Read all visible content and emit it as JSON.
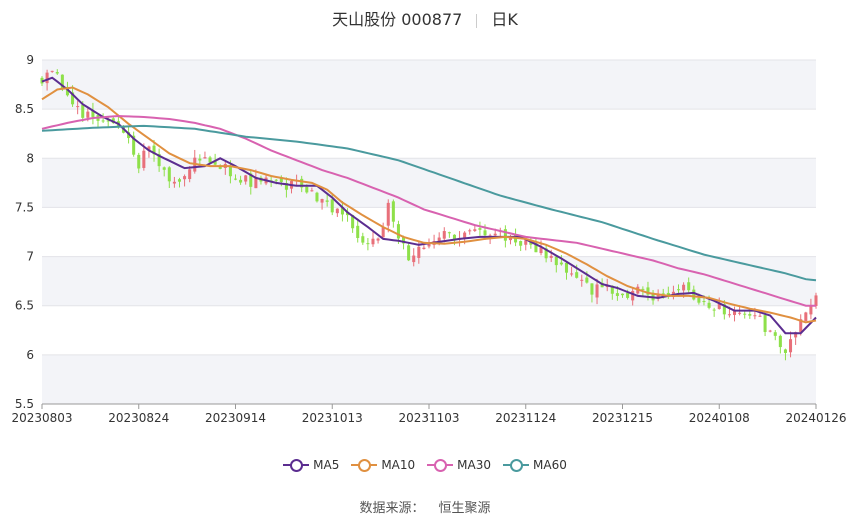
{
  "header": {
    "stock_name_code": "天山股份 000877",
    "period": "日K"
  },
  "footer": {
    "source_label": "数据来源：",
    "source_name": "恒生聚源"
  },
  "colors": {
    "up": "#e8707a",
    "down": "#8ee04a",
    "MA5": "#5b2d90",
    "MA10": "#e09040",
    "MA30": "#d862b0",
    "MA60": "#4a9a9e"
  },
  "chart_data": {
    "type": "candlestick",
    "title": "天山股份 000877 日K",
    "ylim": [
      5.5,
      9
    ],
    "yticks": [
      5.5,
      6,
      6.5,
      7,
      7.5,
      8,
      8.5,
      9
    ],
    "xticks": [
      "20230803",
      "20230824",
      "20230914",
      "20231013",
      "20231103",
      "20231124",
      "20231215",
      "20240108",
      "20240126"
    ],
    "grid": true,
    "legend_position": "bottom",
    "series_names": [
      "MA5",
      "MA10",
      "MA30",
      "MA60"
    ],
    "ma_anchors": {
      "MA5": [
        [
          0,
          8.78
        ],
        [
          2,
          8.82
        ],
        [
          5,
          8.7
        ],
        [
          8,
          8.55
        ],
        [
          12,
          8.42
        ],
        [
          15,
          8.35
        ],
        [
          18,
          8.2
        ],
        [
          21,
          8.08
        ],
        [
          24,
          8.0
        ],
        [
          28,
          7.9
        ],
        [
          32,
          7.92
        ],
        [
          35,
          8.0
        ],
        [
          38,
          7.92
        ],
        [
          42,
          7.8
        ],
        [
          46,
          7.75
        ],
        [
          50,
          7.72
        ],
        [
          54,
          7.72
        ],
        [
          57,
          7.6
        ],
        [
          60,
          7.45
        ],
        [
          64,
          7.3
        ],
        [
          67,
          7.18
        ],
        [
          70,
          7.16
        ],
        [
          74,
          7.12
        ],
        [
          78,
          7.15
        ],
        [
          82,
          7.18
        ],
        [
          86,
          7.2
        ],
        [
          90,
          7.2
        ],
        [
          94,
          7.2
        ],
        [
          98,
          7.1
        ],
        [
          102,
          6.98
        ],
        [
          106,
          6.85
        ],
        [
          110,
          6.72
        ],
        [
          113,
          6.68
        ],
        [
          117,
          6.6
        ],
        [
          121,
          6.58
        ],
        [
          125,
          6.62
        ],
        [
          128,
          6.63
        ],
        [
          132,
          6.55
        ],
        [
          136,
          6.45
        ],
        [
          140,
          6.45
        ],
        [
          143,
          6.4
        ],
        [
          146,
          6.22
        ],
        [
          149,
          6.22
        ],
        [
          152,
          6.38
        ]
      ],
      "MA10": [
        [
          0,
          8.6
        ],
        [
          3,
          8.7
        ],
        [
          6,
          8.72
        ],
        [
          9,
          8.65
        ],
        [
          13,
          8.52
        ],
        [
          17,
          8.35
        ],
        [
          21,
          8.2
        ],
        [
          25,
          8.05
        ],
        [
          29,
          7.95
        ],
        [
          33,
          7.92
        ],
        [
          37,
          7.92
        ],
        [
          41,
          7.88
        ],
        [
          45,
          7.82
        ],
        [
          49,
          7.78
        ],
        [
          53,
          7.75
        ],
        [
          56,
          7.68
        ],
        [
          59,
          7.55
        ],
        [
          63,
          7.42
        ],
        [
          67,
          7.3
        ],
        [
          71,
          7.2
        ],
        [
          75,
          7.14
        ],
        [
          79,
          7.13
        ],
        [
          83,
          7.15
        ],
        [
          87,
          7.18
        ],
        [
          91,
          7.2
        ],
        [
          95,
          7.18
        ],
        [
          99,
          7.12
        ],
        [
          103,
          7.03
        ],
        [
          107,
          6.92
        ],
        [
          111,
          6.8
        ],
        [
          115,
          6.7
        ],
        [
          119,
          6.63
        ],
        [
          123,
          6.6
        ],
        [
          127,
          6.6
        ],
        [
          131,
          6.58
        ],
        [
          135,
          6.52
        ],
        [
          139,
          6.47
        ],
        [
          143,
          6.43
        ],
        [
          147,
          6.38
        ],
        [
          150,
          6.33
        ],
        [
          152,
          6.35
        ]
      ],
      "MA30": [
        [
          0,
          8.3
        ],
        [
          5,
          8.36
        ],
        [
          10,
          8.41
        ],
        [
          15,
          8.43
        ],
        [
          20,
          8.42
        ],
        [
          25,
          8.4
        ],
        [
          30,
          8.36
        ],
        [
          35,
          8.3
        ],
        [
          40,
          8.2
        ],
        [
          45,
          8.08
        ],
        [
          50,
          7.98
        ],
        [
          55,
          7.88
        ],
        [
          60,
          7.8
        ],
        [
          65,
          7.7
        ],
        [
          70,
          7.6
        ],
        [
          75,
          7.48
        ],
        [
          80,
          7.4
        ],
        [
          85,
          7.32
        ],
        [
          90,
          7.26
        ],
        [
          95,
          7.2
        ],
        [
          100,
          7.17
        ],
        [
          105,
          7.14
        ],
        [
          110,
          7.08
        ],
        [
          115,
          7.02
        ],
        [
          120,
          6.96
        ],
        [
          125,
          6.88
        ],
        [
          130,
          6.82
        ],
        [
          135,
          6.74
        ],
        [
          140,
          6.66
        ],
        [
          145,
          6.58
        ],
        [
          150,
          6.5
        ],
        [
          152,
          6.5
        ]
      ],
      "MA60": [
        [
          0,
          8.28
        ],
        [
          10,
          8.31
        ],
        [
          20,
          8.33
        ],
        [
          30,
          8.3
        ],
        [
          40,
          8.22
        ],
        [
          50,
          8.17
        ],
        [
          60,
          8.1
        ],
        [
          70,
          7.98
        ],
        [
          80,
          7.8
        ],
        [
          90,
          7.62
        ],
        [
          100,
          7.48
        ],
        [
          110,
          7.35
        ],
        [
          120,
          7.18
        ],
        [
          130,
          7.02
        ],
        [
          140,
          6.9
        ],
        [
          146,
          6.83
        ],
        [
          150,
          6.77
        ],
        [
          152,
          6.76
        ]
      ]
    },
    "candles": {
      "count": 153,
      "close_anchors": [
        [
          0,
          8.8
        ],
        [
          2,
          8.9
        ],
        [
          5,
          8.65
        ],
        [
          8,
          8.45
        ],
        [
          11,
          8.4
        ],
        [
          14,
          8.35
        ],
        [
          17,
          8.2
        ],
        [
          19,
          7.95
        ],
        [
          21,
          8.1
        ],
        [
          24,
          7.85
        ],
        [
          26,
          7.75
        ],
        [
          28,
          7.85
        ],
        [
          30,
          8.0
        ],
        [
          33,
          7.95
        ],
        [
          36,
          7.9
        ],
        [
          39,
          7.8
        ],
        [
          42,
          7.75
        ],
        [
          45,
          7.8
        ],
        [
          48,
          7.7
        ],
        [
          51,
          7.75
        ],
        [
          54,
          7.6
        ],
        [
          56,
          7.5
        ],
        [
          59,
          7.45
        ],
        [
          61,
          7.3
        ],
        [
          63,
          7.1
        ],
        [
          66,
          7.15
        ],
        [
          68,
          7.55
        ],
        [
          70,
          7.2
        ],
        [
          72,
          7.0
        ],
        [
          75,
          7.15
        ],
        [
          78,
          7.2
        ],
        [
          81,
          7.2
        ],
        [
          84,
          7.22
        ],
        [
          87,
          7.25
        ],
        [
          90,
          7.22
        ],
        [
          93,
          7.15
        ],
        [
          96,
          7.1
        ],
        [
          99,
          7.02
        ],
        [
          102,
          6.9
        ],
        [
          105,
          6.75
        ],
        [
          108,
          6.65
        ],
        [
          111,
          6.7
        ],
        [
          114,
          6.6
        ],
        [
          117,
          6.65
        ],
        [
          120,
          6.6
        ],
        [
          123,
          6.65
        ],
        [
          126,
          6.75
        ],
        [
          129,
          6.55
        ],
        [
          132,
          6.5
        ],
        [
          135,
          6.45
        ],
        [
          138,
          6.45
        ],
        [
          141,
          6.35
        ],
        [
          144,
          6.15
        ],
        [
          146,
          6.05
        ],
        [
          148,
          6.2
        ],
        [
          150,
          6.45
        ],
        [
          152,
          6.65
        ]
      ],
      "seed": 877
    }
  }
}
